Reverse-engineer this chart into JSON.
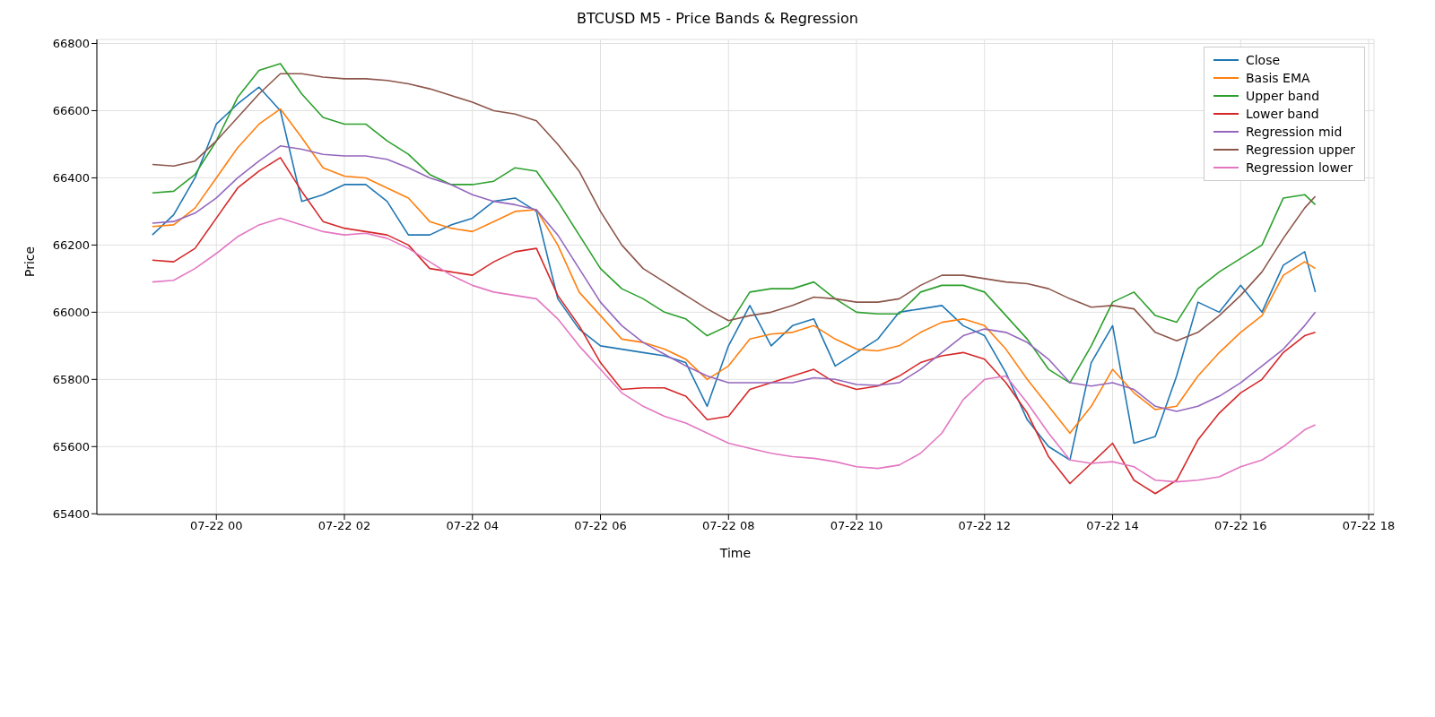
{
  "chart_data": {
    "type": "line",
    "title": "BTCUSD M5 - Price Bands & Regression",
    "xlabel": "Time",
    "ylabel": "Price",
    "x": [
      "--07-21T23:00",
      "--07-21T23:20",
      "--07-21T23:40",
      "--07-22T00:00",
      "--07-22T00:20",
      "--07-22T00:40",
      "--07-22T01:00",
      "--07-22T01:20",
      "--07-22T01:40",
      "--07-22T02:00",
      "--07-22T02:20",
      "--07-22T02:40",
      "--07-22T03:00",
      "--07-22T03:20",
      "--07-22T03:40",
      "--07-22T04:00",
      "--07-22T04:20",
      "--07-22T04:40",
      "--07-22T05:00",
      "--07-22T05:20",
      "--07-22T05:40",
      "--07-22T06:00",
      "--07-22T06:20",
      "--07-22T06:40",
      "--07-22T07:00",
      "--07-22T07:20",
      "--07-22T07:40",
      "--07-22T08:00",
      "--07-22T08:20",
      "--07-22T08:40",
      "--07-22T09:00",
      "--07-22T09:20",
      "--07-22T09:40",
      "--07-22T10:00",
      "--07-22T10:20",
      "--07-22T10:40",
      "--07-22T11:00",
      "--07-22T11:20",
      "--07-22T11:40",
      "--07-22T12:00",
      "--07-22T12:20",
      "--07-22T12:40",
      "--07-22T13:00",
      "--07-22T13:20",
      "--07-22T13:40",
      "--07-22T14:00",
      "--07-22T14:20",
      "--07-22T14:40",
      "--07-22T15:00",
      "--07-22T15:20",
      "--07-22T15:40",
      "--07-22T16:00",
      "--07-22T16:20",
      "--07-22T16:40",
      "--07-22T17:00",
      "--07-22T17:10"
    ],
    "series": [
      {
        "name": "Close",
        "color": "#1f77b4",
        "values": [
          66230,
          66290,
          66400,
          66560,
          66620,
          66670,
          66600,
          66330,
          66350,
          66380,
          66380,
          66330,
          66230,
          66230,
          66260,
          66280,
          66330,
          66340,
          66300,
          66040,
          65950,
          65900,
          65890,
          65880,
          65870,
          65850,
          65720,
          65900,
          66020,
          65900,
          65960,
          65980,
          65840,
          65880,
          65920,
          66000,
          66010,
          66020,
          65960,
          65930,
          65820,
          65680,
          65600,
          65560,
          65850,
          65960,
          65610,
          65630,
          65810,
          66030,
          66000,
          66080,
          66000,
          66140,
          66180,
          66060
        ]
      },
      {
        "name": "Basis EMA",
        "color": "#ff7f0e",
        "values": [
          66255,
          66260,
          66310,
          66400,
          66490,
          66560,
          66605,
          66520,
          66430,
          66405,
          66400,
          66370,
          66340,
          66270,
          66250,
          66240,
          66270,
          66300,
          66305,
          66200,
          66060,
          65990,
          65920,
          65910,
          65890,
          65860,
          65800,
          65840,
          65920,
          65935,
          65940,
          65960,
          65920,
          65890,
          65885,
          65900,
          65940,
          65970,
          65980,
          65960,
          65890,
          65800,
          65720,
          65640,
          65720,
          65830,
          65760,
          65710,
          65720,
          65810,
          65880,
          65940,
          65990,
          66110,
          66150,
          66130
        ]
      },
      {
        "name": "Upper band",
        "color": "#2ca02c",
        "values": [
          66355,
          66360,
          66410,
          66510,
          66640,
          66720,
          66740,
          66650,
          66580,
          66560,
          66560,
          66510,
          66470,
          66410,
          66380,
          66380,
          66390,
          66430,
          66420,
          66330,
          66230,
          66130,
          66070,
          66040,
          66000,
          65980,
          65930,
          65960,
          66060,
          66070,
          66070,
          66090,
          66040,
          66000,
          65995,
          65995,
          66060,
          66080,
          66080,
          66060,
          65990,
          65920,
          65830,
          65790,
          65900,
          66030,
          66060,
          65990,
          65970,
          66070,
          66120,
          66160,
          66200,
          66340,
          66350,
          66320
        ]
      },
      {
        "name": "Lower band",
        "color": "#d62728",
        "values": [
          66155,
          66150,
          66190,
          66280,
          66370,
          66420,
          66460,
          66360,
          66270,
          66250,
          66240,
          66230,
          66200,
          66130,
          66120,
          66110,
          66150,
          66180,
          66190,
          66050,
          65960,
          65850,
          65770,
          65775,
          65775,
          65750,
          65680,
          65690,
          65770,
          65790,
          65810,
          65830,
          65790,
          65770,
          65780,
          65810,
          65850,
          65870,
          65880,
          65860,
          65790,
          65700,
          65570,
          65490,
          65550,
          65610,
          65500,
          65460,
          65500,
          65620,
          65700,
          65760,
          65800,
          65880,
          65930,
          65940
        ]
      },
      {
        "name": "Regression mid",
        "color": "#9467bd",
        "values": [
          66265,
          66270,
          66295,
          66340,
          66400,
          66450,
          66495,
          66485,
          66470,
          66465,
          66465,
          66455,
          66430,
          66400,
          66380,
          66350,
          66330,
          66320,
          66305,
          66230,
          66130,
          66030,
          65960,
          65910,
          65875,
          65840,
          65810,
          65790,
          65790,
          65790,
          65790,
          65805,
          65800,
          65785,
          65782,
          65790,
          65830,
          65880,
          65930,
          65950,
          65940,
          65910,
          65860,
          65790,
          65780,
          65790,
          65770,
          65720,
          65705,
          65720,
          65750,
          65790,
          65840,
          65890,
          65960,
          66000
        ]
      },
      {
        "name": "Regression upper",
        "color": "#8c564b",
        "values": [
          66440,
          66435,
          66450,
          66510,
          66580,
          66650,
          66710,
          66710,
          66700,
          66695,
          66695,
          66690,
          66680,
          66665,
          66645,
          66625,
          66600,
          66590,
          66570,
          66500,
          66420,
          66300,
          66200,
          66130,
          66090,
          66050,
          66010,
          65975,
          65990,
          66000,
          66020,
          66045,
          66040,
          66030,
          66030,
          66040,
          66080,
          66110,
          66110,
          66100,
          66090,
          66085,
          66070,
          66040,
          66015,
          66020,
          66010,
          65940,
          65915,
          65940,
          65990,
          66050,
          66120,
          66220,
          66310,
          66345
        ]
      },
      {
        "name": "Regression lower",
        "color": "#e377c2",
        "values": [
          66090,
          66095,
          66130,
          66175,
          66225,
          66260,
          66280,
          66260,
          66240,
          66230,
          66235,
          66220,
          66190,
          66150,
          66110,
          66080,
          66060,
          66050,
          66040,
          65980,
          65900,
          65830,
          65760,
          65720,
          65690,
          65670,
          65640,
          65610,
          65595,
          65580,
          65570,
          65565,
          65555,
          65540,
          65535,
          65545,
          65580,
          65640,
          65740,
          65800,
          65810,
          65730,
          65640,
          65560,
          65550,
          65555,
          65540,
          65500,
          65495,
          65500,
          65510,
          65540,
          65560,
          65600,
          65650,
          65665
        ]
      }
    ],
    "xlim": [
      "--07-21T22:08",
      "--07-22T18:05"
    ],
    "xticks": [
      {
        "value": "--07-22T00:00",
        "label": "07-22 00"
      },
      {
        "value": "--07-22T02:00",
        "label": "07-22 02"
      },
      {
        "value": "--07-22T04:00",
        "label": "07-22 04"
      },
      {
        "value": "--07-22T06:00",
        "label": "07-22 06"
      },
      {
        "value": "--07-22T08:00",
        "label": "07-22 08"
      },
      {
        "value": "--07-22T10:00",
        "label": "07-22 10"
      },
      {
        "value": "--07-22T12:00",
        "label": "07-22 12"
      },
      {
        "value": "--07-22T14:00",
        "label": "07-22 14"
      },
      {
        "value": "--07-22T16:00",
        "label": "07-22 16"
      },
      {
        "value": "--07-22T18:00",
        "label": "07-22 18"
      }
    ],
    "ylim": [
      65398,
      66812
    ],
    "yticks": [
      65400,
      65600,
      65800,
      66000,
      66200,
      66400,
      66600,
      66800
    ],
    "grid": true,
    "legend": "top right",
    "marker": "none",
    "line_style": "solid"
  }
}
